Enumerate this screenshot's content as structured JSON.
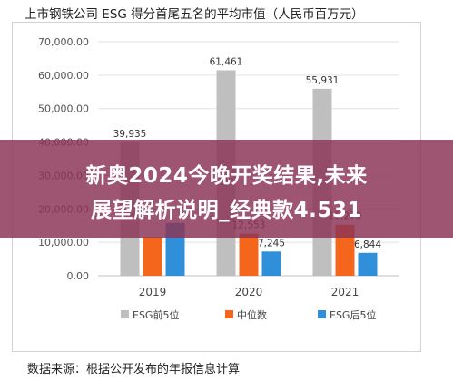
{
  "title": "上市钢铁公司 ESG 得分首尾五名的平均市值（人民币百万元）",
  "source": "数据来源：根据公开发布的年报信息计算",
  "banner": {
    "line1": "新奥2024今晚开奖结果,未来",
    "line2": "展望解析说明_经典款4.531"
  },
  "chart_data": {
    "type": "bar",
    "categories": [
      "2019",
      "2020",
      "2021"
    ],
    "series": [
      {
        "name": "ESG前5位",
        "values": [
          39935,
          61461,
          55931
        ],
        "labels": [
          "39,935",
          "61,461",
          "55,931"
        ],
        "color": "#bfbfbf"
      },
      {
        "name": "中位数",
        "values": [
          11600,
          12553,
          15270
        ],
        "labels": [
          "",
          "12,553",
          "15,270"
        ],
        "color": "#f4661b"
      },
      {
        "name": "ESG后5位",
        "values": [
          15800,
          7245,
          6844
        ],
        "labels": [
          "",
          "7,245",
          "6,844"
        ],
        "color": "#2f8fd8"
      }
    ],
    "yticks": [
      "0.00",
      "10,000.00",
      "20,000.00",
      "30,000.00",
      "40,000.00",
      "50,000.00",
      "60,000.00",
      "70,000.00"
    ],
    "ylim": [
      0,
      70000
    ],
    "ytick_step": 10000,
    "grid": true,
    "legend_position": "bottom"
  }
}
